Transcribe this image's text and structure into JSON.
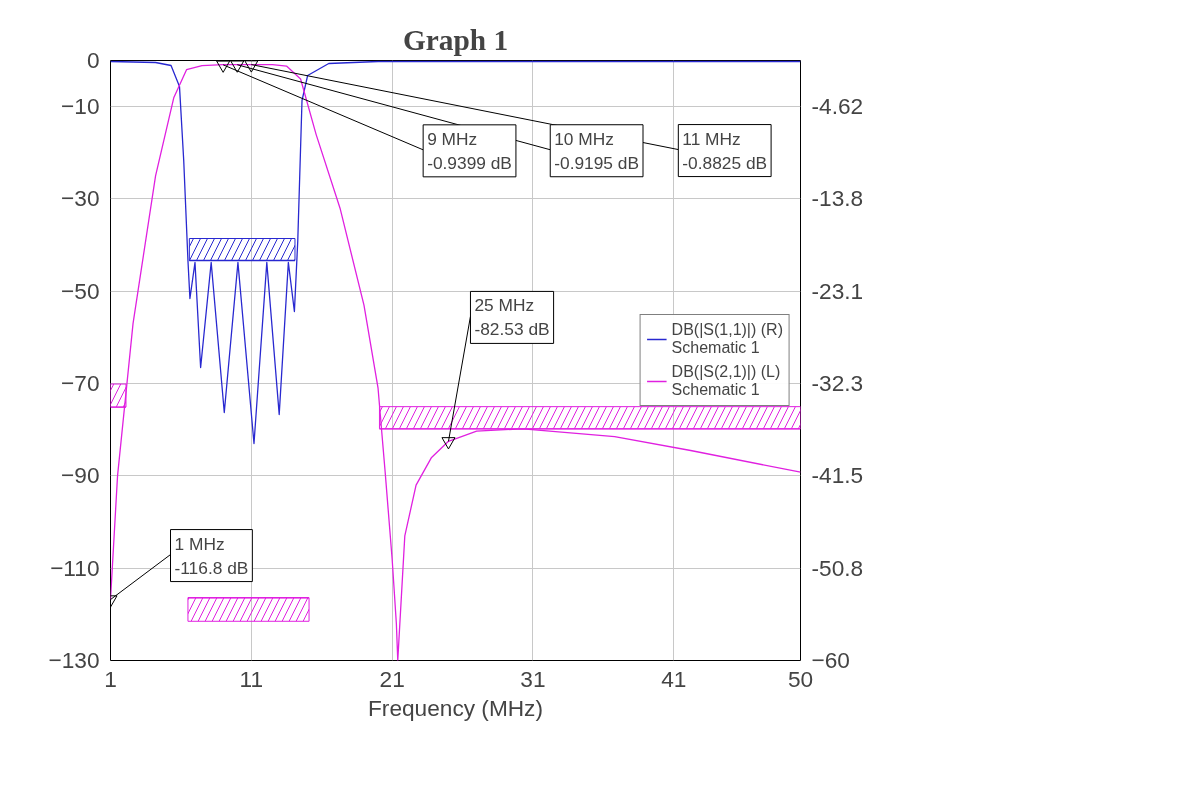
{
  "chart_data": {
    "type": "line",
    "title": "Graph 1",
    "xlabel": "Frequency (MHz)",
    "xlim": [
      1,
      50
    ],
    "xticks": [
      1,
      11,
      21,
      31,
      41,
      50
    ],
    "ylim": [
      -130,
      0
    ],
    "yticks": [
      0,
      -10,
      -30,
      -50,
      -70,
      -90,
      -110,
      -130
    ],
    "y2lim": [
      -60,
      0
    ],
    "y2ticks": [
      {
        "value": -4.615,
        "label": "-4.62"
      },
      {
        "value": -13.846,
        "label": "-13.8"
      },
      {
        "value": -23.077,
        "label": "-23.1"
      },
      {
        "value": -32.308,
        "label": "-32.3"
      },
      {
        "value": -41.538,
        "label": "-41.5"
      },
      {
        "value": -50.769,
        "label": "-50.8"
      },
      -60
    ],
    "grid": true,
    "legend": "right",
    "line_style": "solid",
    "series": [
      {
        "name": "DB(|S(1,1)|) (R)\nSchematic 1",
        "color": "#2828d0",
        "axis": "y2",
        "x": [
          1,
          4.2,
          5.3,
          5.9,
          6.2,
          6.5,
          6.64,
          7,
          7.4,
          8.15,
          9.08,
          10.05,
          11.19,
          12.1,
          12.98,
          13.63,
          14.06,
          14.3,
          14.6,
          15,
          16.5,
          20,
          50
        ],
        "values": [
          -0.1,
          -0.2,
          -0.5,
          -2.6,
          -10,
          -20,
          -23.8,
          -20.2,
          -30.7,
          -20.2,
          -35.2,
          -20.2,
          -38.3,
          -20.2,
          -35.4,
          -20.2,
          -25.1,
          -18,
          -4,
          -1.5,
          -0.3,
          -0.1,
          -0.1
        ]
      },
      {
        "name": "DB(|S(2,1)|) (L)\nSchematic 1",
        "color": "#e020e0",
        "x": [
          1,
          1.5,
          2.6,
          4.2,
          5.5,
          6.4,
          7.5,
          9,
          10,
          11,
          12.5,
          13.5,
          14.5,
          15.6,
          17.3,
          19,
          20,
          20.5,
          21,
          21.3,
          21.4,
          21.9,
          22.7,
          23.8,
          25,
          27,
          30.3,
          36.8,
          42.2,
          50
        ],
        "values": [
          -116.8,
          -90,
          -57,
          -25,
          -8,
          -2,
          -1.1,
          -0.9,
          -0.9,
          -0.9,
          -0.9,
          -1.2,
          -4,
          -16,
          -32,
          -53,
          -71,
          -89,
          -108,
          -122,
          -130,
          -103,
          -92,
          -86,
          -82.5,
          -80.3,
          -79.8,
          -81.5,
          -84.5,
          -89.2
        ]
      },
      {
        "color": "#2828d0",
        "axis": "y2",
        "x": [
          6.6,
          14.1
        ],
        "values": [
          -20.0,
          -20.0
        ],
        "lower": [
          -20.0,
          -20.0
        ],
        "upper": [
          -17.8,
          -17.8
        ]
      },
      {
        "color": "#e020e0",
        "x": [
          20.1,
          50
        ],
        "values": [
          -79.8,
          -79.8
        ],
        "lower": [
          -79.8,
          -79.8
        ],
        "upper": [
          -75.0,
          -75.0
        ]
      },
      {
        "color": "#e020e0",
        "x": [
          6.5,
          15.1
        ],
        "values": [
          -116.4,
          -116.4
        ],
        "lower": [
          -121.5,
          -121.5
        ],
        "upper": [
          -116.4,
          -116.4
        ]
      },
      {
        "color": "#e020e0",
        "x": [
          1,
          2.1
        ],
        "values": [
          -75.1,
          -75.1
        ],
        "lower": [
          -75.1,
          -75.1
        ],
        "upper": [
          -70.1,
          -70.1
        ]
      }
    ],
    "annotations": [
      {
        "text": "9 MHz\n-0.9399 dB",
        "x": 9,
        "y": -0.9399
      },
      {
        "text": "10 MHz\n-0.9195 dB",
        "x": 10,
        "y": -0.9195
      },
      {
        "text": "11 MHz\n-0.8825 dB",
        "x": 11,
        "y": -0.8825
      },
      {
        "text": "25 MHz\n-82.53 dB",
        "x": 25,
        "y": -82.53
      },
      {
        "text": "1 MHz\n-116.8 dB",
        "x": 1,
        "y": -116.8
      }
    ]
  }
}
